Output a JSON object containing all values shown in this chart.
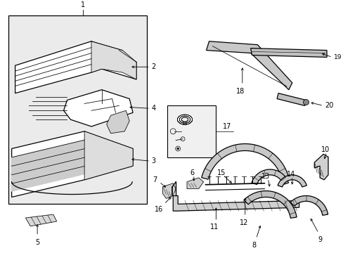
{
  "bg_color": "#ffffff",
  "line_color": "#000000",
  "box_fill": "#ebebeb",
  "fig_width": 4.89,
  "fig_height": 3.6,
  "dpi": 100
}
